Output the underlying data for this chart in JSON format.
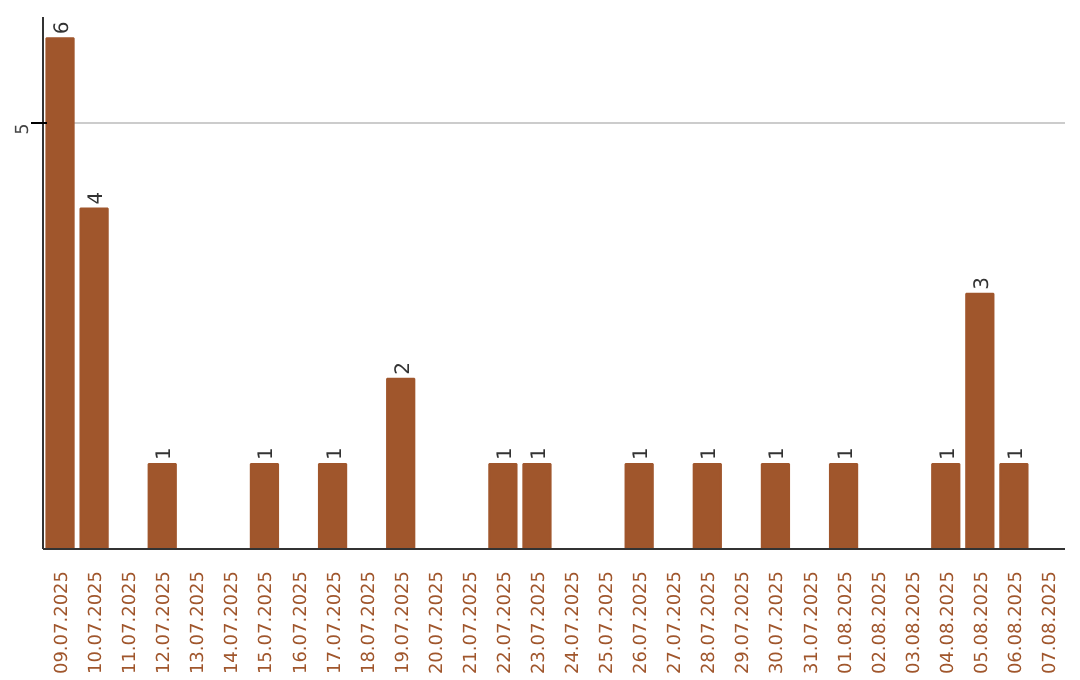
{
  "chart_data": {
    "type": "bar",
    "categories": [
      "09.07.2025",
      "10.07.2025",
      "11.07.2025",
      "12.07.2025",
      "13.07.2025",
      "14.07.2025",
      "15.07.2025",
      "16.07.2025",
      "17.07.2025",
      "18.07.2025",
      "19.07.2025",
      "20.07.2025",
      "21.07.2025",
      "22.07.2025",
      "23.07.2025",
      "24.07.2025",
      "25.07.2025",
      "26.07.2025",
      "27.07.2025",
      "28.07.2025",
      "29.07.2025",
      "30.07.2025",
      "31.07.2025",
      "01.08.2025",
      "02.08.2025",
      "03.08.2025",
      "04.08.2025",
      "05.08.2025",
      "06.08.2025",
      "07.08.2025"
    ],
    "values": [
      6,
      4,
      0,
      1,
      0,
      0,
      1,
      0,
      1,
      0,
      2,
      0,
      0,
      1,
      1,
      0,
      0,
      1,
      0,
      1,
      0,
      1,
      0,
      1,
      0,
      0,
      1,
      3,
      1,
      0
    ],
    "value_labels": [
      "6",
      "4",
      null,
      "1",
      null,
      null,
      "1",
      null,
      "1",
      null,
      "2",
      null,
      null,
      "1",
      "1",
      null,
      null,
      "1",
      null,
      "1",
      null,
      "1",
      null,
      "1",
      null,
      null,
      "1",
      "3",
      "1",
      null
    ],
    "color": "#a0562c",
    "ylim": [
      0,
      6.25
    ],
    "yticks": [
      5
    ],
    "grid": "y"
  }
}
